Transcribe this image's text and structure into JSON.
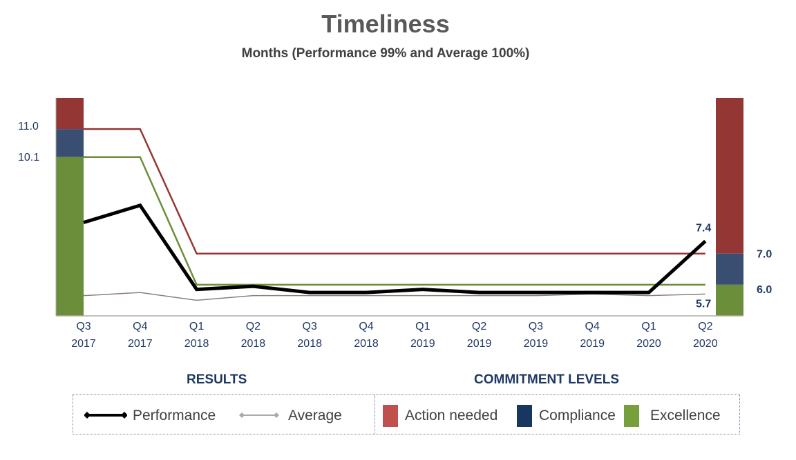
{
  "chart_data": {
    "type": "line",
    "title": "Timeliness",
    "subtitle": "Months (Performance 99% and Average 100%)",
    "categories": [
      [
        "Q3",
        "2017"
      ],
      [
        "Q4",
        "2017"
      ],
      [
        "Q1",
        "2018"
      ],
      [
        "Q2",
        "2018"
      ],
      [
        "Q3",
        "2018"
      ],
      [
        "Q4",
        "2018"
      ],
      [
        "Q1",
        "2019"
      ],
      [
        "Q2",
        "2019"
      ],
      [
        "Q3",
        "2019"
      ],
      [
        "Q4",
        "2019"
      ],
      [
        "Q1",
        "2020"
      ],
      [
        "Q2",
        "2020"
      ]
    ],
    "ylim": [
      5.0,
      12.0
    ],
    "series": [
      {
        "name": "Performance",
        "color": "#000000",
        "values": [
          8.0,
          8.55,
          5.85,
          5.95,
          5.75,
          5.75,
          5.85,
          5.75,
          5.75,
          5.75,
          5.75,
          7.4
        ]
      },
      {
        "name": "Average",
        "color": "#8c7f78",
        "values": [
          5.65,
          5.75,
          5.5,
          5.65,
          5.65,
          5.65,
          5.65,
          5.65,
          5.65,
          5.7,
          5.65,
          5.7
        ]
      }
    ],
    "thresholds": [
      {
        "name": "Action needed",
        "color": "#943634",
        "values": [
          11.0,
          11.0,
          7.0,
          7.0,
          7.0,
          7.0,
          7.0,
          7.0,
          7.0,
          7.0,
          7.0,
          7.0
        ]
      },
      {
        "name": "Excellence",
        "color": "#6b8e3a",
        "values": [
          10.1,
          10.1,
          6.0,
          6.0,
          6.0,
          6.0,
          6.0,
          6.0,
          6.0,
          6.0,
          6.0,
          6.0
        ]
      }
    ],
    "left_band": {
      "excellence_top": 10.1,
      "compliance_top": 11.0,
      "action_top": 12.0
    },
    "right_band": {
      "excellence_top": 6.0,
      "compliance_top": 7.0,
      "action_top": 12.0
    },
    "left_labels": [
      "11.0",
      "10.1"
    ],
    "right_labels": [
      "7.0",
      "6.0"
    ],
    "end_labels": {
      "performance": "7.4",
      "average": "5.7"
    },
    "band_colors": {
      "action": "#943634",
      "compliance": "#3a4e72",
      "excellence": "#6b8e3a"
    }
  },
  "legend": {
    "results_heading": "RESULTS",
    "commitment_heading": "COMMITMENT LEVELS",
    "performance": "Performance",
    "average": "Average",
    "action_needed": "Action needed",
    "compliance": "Compliance",
    "excellence": "Excellence",
    "swatch_action": "#c0504d",
    "swatch_compliance": "#17375e",
    "swatch_excellence": "#77a03c"
  }
}
